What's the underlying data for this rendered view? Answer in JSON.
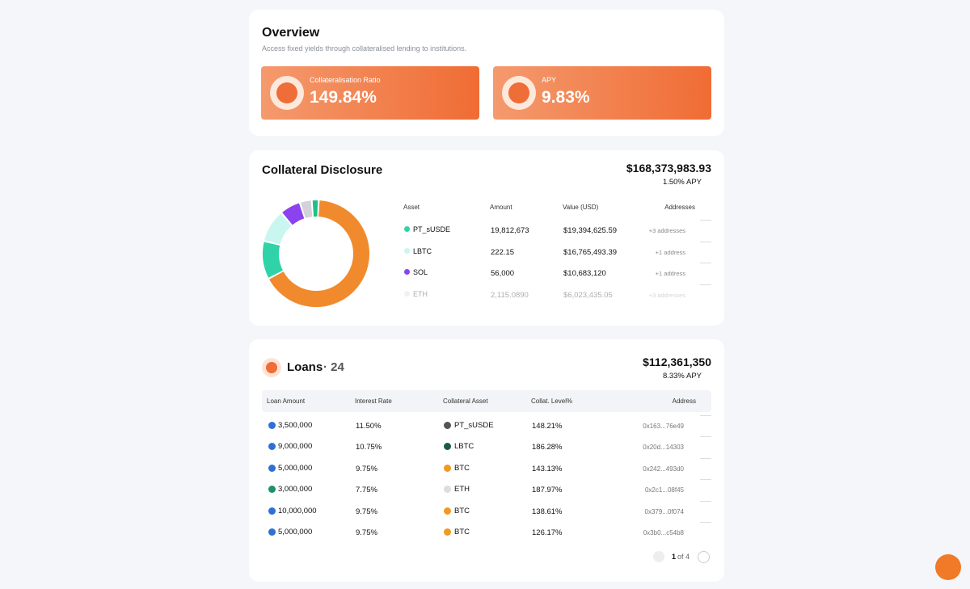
{
  "overview": {
    "title": "Overview",
    "subtitle": "Access fixed yields through collateralised lending to institutions.",
    "stats": [
      {
        "label": "Collateralisation Ratio",
        "value": "149.84%"
      },
      {
        "label": "APY",
        "value": "9.83%"
      }
    ]
  },
  "collateral": {
    "title": "Collateral Disclosure",
    "total": "$168,373,983.93",
    "apy": "1.50% APY",
    "columns": [
      "Asset",
      "Amount",
      "Value (USD)",
      "Addresses"
    ],
    "rows": [
      {
        "asset": "PT_sUSDE",
        "color": "#2fd3a7",
        "amount": "19,812,673",
        "value": "$19,394,625.59",
        "addresses": "+3 addresses"
      },
      {
        "asset": "LBTC",
        "color": "#c9f6ef",
        "amount": "222.15",
        "value": "$16,765,493.39",
        "addresses": "+1 address"
      },
      {
        "asset": "SOL",
        "color": "#8a43ef",
        "amount": "56,000",
        "value": "$10,683,120",
        "addresses": "+1 address"
      },
      {
        "asset": "ETH",
        "color": "#d8d8dc",
        "amount": "2,115.0890",
        "value": "$6,023,435.05",
        "addresses": "+3 addresses"
      }
    ],
    "donut": {
      "segments": [
        {
          "color": "#f08a2c",
          "value": 66.5
        },
        {
          "color": "#2fd3a7",
          "value": 11.5
        },
        {
          "color": "#c9f6ef",
          "value": 10.0
        },
        {
          "color": "#8a43ef",
          "value": 6.3
        },
        {
          "color": "#d2d2d8",
          "value": 3.6
        },
        {
          "color": "#1fbf8a",
          "value": 2.1
        }
      ]
    }
  },
  "loans": {
    "title": "Loans",
    "count": "· 24",
    "total": "$112,361,350",
    "apy": "8.33% APY",
    "columns": [
      "Loan Amount",
      "Interest Rate",
      "Collateral Asset",
      "Collat. Level%",
      "Address"
    ],
    "rows": [
      {
        "amount": "3,500,000",
        "coin": "#2f6fd6",
        "rate": "11.50%",
        "asset": "PT_sUSDE",
        "icon": "#555555",
        "level": "148.21%",
        "address": "0x163...76e49"
      },
      {
        "amount": "9,000,000",
        "coin": "#2f6fd6",
        "rate": "10.75%",
        "asset": "LBTC",
        "icon": "#1b5a4a",
        "level": "186.28%",
        "address": "0x20d...14303"
      },
      {
        "amount": "5,000,000",
        "coin": "#2f6fd6",
        "rate": "9.75%",
        "asset": "BTC",
        "icon": "#f29a1f",
        "level": "143.13%",
        "address": "0x242...493d0"
      },
      {
        "amount": "3,000,000",
        "coin": "#1f8f6e",
        "rate": "7.75%",
        "asset": "ETH",
        "icon": "#dddddd",
        "level": "187.97%",
        "address": "0x2c1...08f45"
      },
      {
        "amount": "10,000,000",
        "coin": "#2f6fd6",
        "rate": "9.75%",
        "asset": "BTC",
        "icon": "#f29a1f",
        "level": "138.61%",
        "address": "0x379...0f074"
      },
      {
        "amount": "5,000,000",
        "coin": "#2f6fd6",
        "rate": "9.75%",
        "asset": "BTC",
        "icon": "#f29a1f",
        "level": "126.17%",
        "address": "0x3b0...c54b8"
      }
    ],
    "pagination": {
      "page": "1",
      "of": "of 4"
    }
  }
}
